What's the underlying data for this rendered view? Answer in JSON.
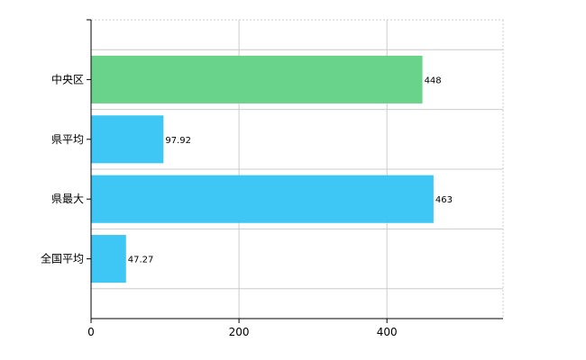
{
  "chart_data": {
    "type": "bar",
    "orientation": "horizontal",
    "categories": [
      "中央区",
      "県平均",
      "県最大",
      "全国平均"
    ],
    "values": [
      448,
      97.92,
      463,
      47.27
    ],
    "value_labels": [
      "448",
      "97.92",
      "463",
      "47.27"
    ],
    "colors": [
      "#6ad38b",
      "#3ec6f5",
      "#3ec6f5",
      "#3ec6f5"
    ],
    "xlim": [
      0,
      557
    ],
    "x_ticks": [
      0,
      200,
      400
    ],
    "grid": true
  }
}
